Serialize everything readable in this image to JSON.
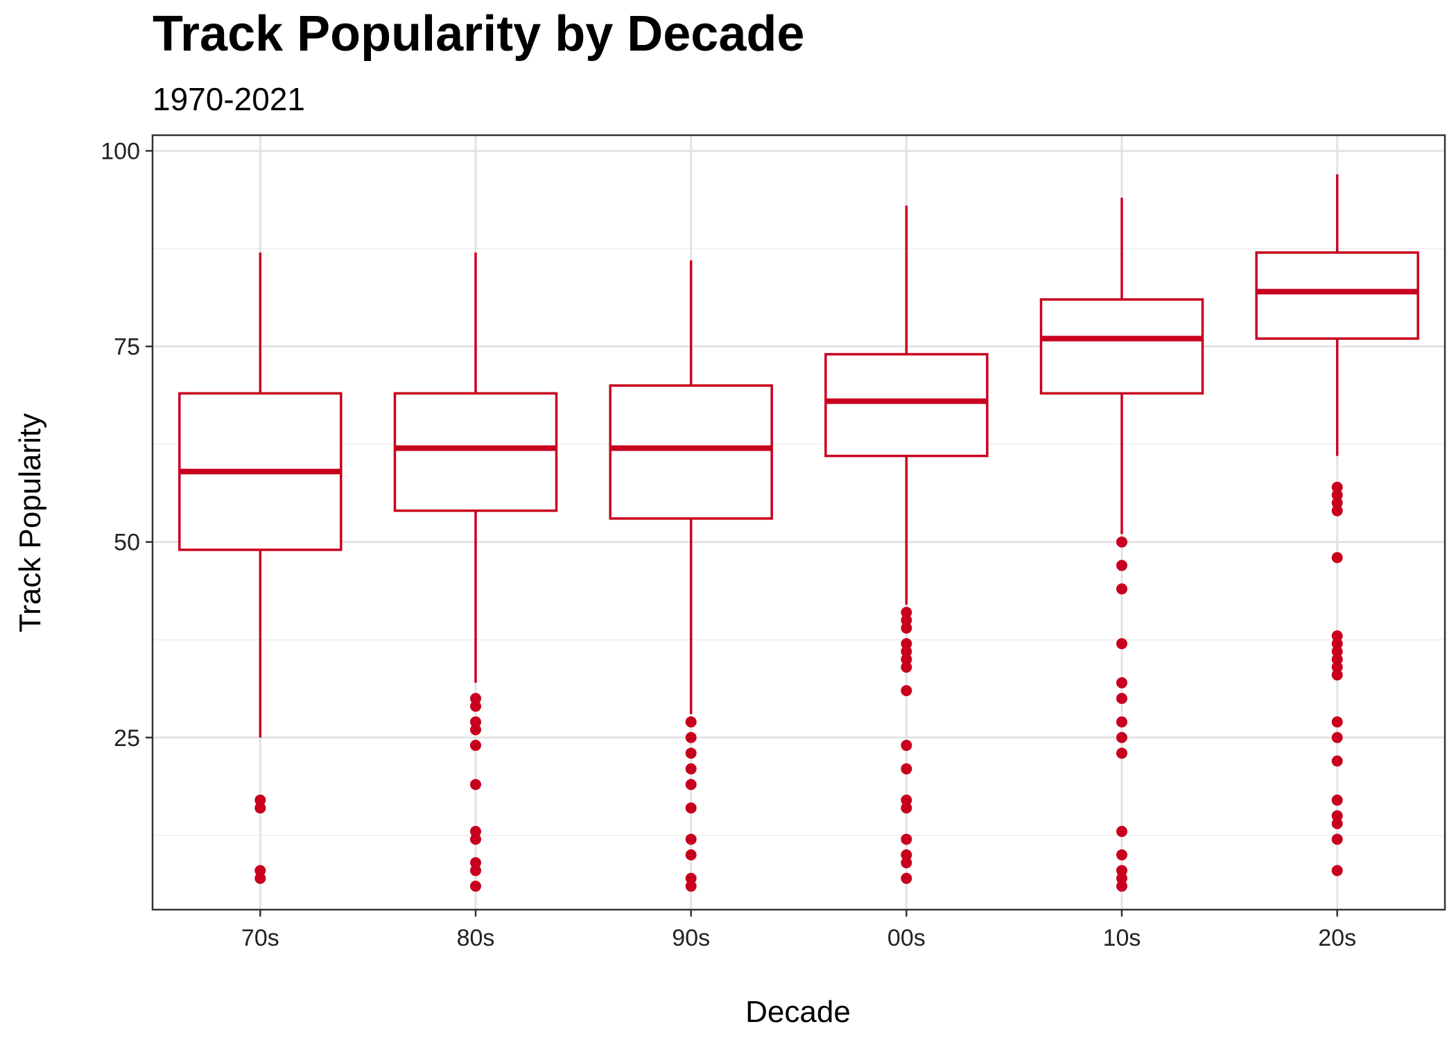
{
  "chart_data": {
    "type": "box",
    "title": "Track Popularity by Decade",
    "subtitle": "1970-2021",
    "xlabel": "Decade",
    "ylabel": "Track Popularity",
    "ylim": [
      3,
      102
    ],
    "yticks": [
      25,
      50,
      75,
      100
    ],
    "grid": true,
    "color": "#c8001e",
    "categories": [
      "70s",
      "80s",
      "90s",
      "00s",
      "10s",
      "20s"
    ],
    "boxes": [
      {
        "category": "70s",
        "whisker_low": 25,
        "q1": 49,
        "median": 59,
        "q3": 69,
        "whisker_high": 87,
        "outliers": [
          17,
          16,
          8,
          7
        ]
      },
      {
        "category": "80s",
        "whisker_low": 32,
        "q1": 54,
        "median": 62,
        "q3": 69,
        "whisker_high": 87,
        "outliers": [
          30,
          29,
          27,
          26,
          24,
          19,
          13,
          12,
          9,
          8,
          6
        ]
      },
      {
        "category": "90s",
        "whisker_low": 28,
        "q1": 53,
        "median": 62,
        "q3": 70,
        "whisker_high": 86,
        "outliers": [
          27,
          25,
          23,
          21,
          19,
          16,
          12,
          10,
          7,
          6
        ]
      },
      {
        "category": "00s",
        "whisker_low": 42,
        "q1": 61,
        "median": 68,
        "q3": 74,
        "whisker_high": 93,
        "outliers": [
          41,
          40,
          39,
          37,
          36,
          35,
          34,
          31,
          24,
          21,
          17,
          16,
          12,
          10,
          9,
          7
        ]
      },
      {
        "category": "10s",
        "whisker_low": 51,
        "q1": 69,
        "median": 76,
        "q3": 81,
        "whisker_high": 94,
        "outliers": [
          50,
          47,
          44,
          37,
          32,
          30,
          27,
          25,
          23,
          13,
          10,
          8,
          7,
          6
        ]
      },
      {
        "category": "20s",
        "whisker_low": 61,
        "q1": 76,
        "median": 82,
        "q3": 87,
        "whisker_high": 97,
        "outliers": [
          57,
          56,
          55,
          54,
          48,
          38,
          37,
          36,
          35,
          34,
          33,
          27,
          25,
          22,
          17,
          15,
          14,
          12,
          8
        ]
      }
    ]
  }
}
